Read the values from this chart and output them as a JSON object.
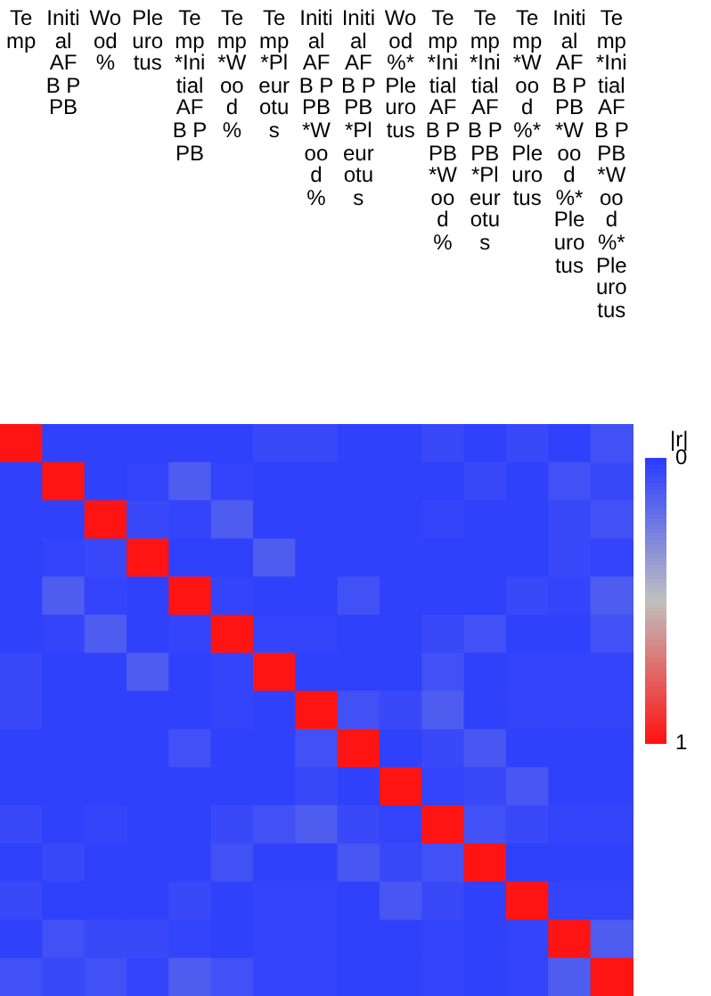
{
  "chart_data": {
    "type": "heatmap",
    "clabel": "|r|",
    "categories": [
      "Temp",
      "Initial AFB PPB",
      "Wood %",
      "Pleurotus",
      "Temp*Initial AFB PPB",
      "Temp*Wood %",
      "Temp*Pleurotus",
      "Initial AFB PPB*Wood %",
      "Initial AFB PPB*Pleurotus",
      "Wood %*Pleurotus",
      "Temp*Initial AFB PPB*Wood %",
      "Temp*Initial AFB PPB*Pleurotus",
      "Temp*Wood %*Pleurotus",
      "Initial AFB PPB*Wood %*Pleurotus",
      "Temp*Initial AFB PPB*Wood %*Pleurotus"
    ],
    "y_categories": [
      null,
      null,
      null,
      null,
      null,
      null,
      null,
      null,
      null,
      null,
      null,
      null,
      null,
      null,
      null
    ],
    "cells": [
      [
        1,
        0.02,
        0.02,
        0.02,
        0.02,
        0.02,
        0.05,
        0.05,
        0.02,
        0.02,
        0.05,
        0.02,
        0.05,
        0.02,
        0.08
      ],
      [
        0.02,
        1,
        0.02,
        0.03,
        0.12,
        0.03,
        0.02,
        0.02,
        0.02,
        0.02,
        0.02,
        0.05,
        0.02,
        0.08,
        0.05
      ],
      [
        0.02,
        0.02,
        1,
        0.05,
        0.03,
        0.12,
        0.02,
        0.02,
        0.02,
        0.02,
        0.03,
        0.02,
        0.02,
        0.05,
        0.08
      ],
      [
        0.02,
        0.03,
        0.05,
        1,
        0.02,
        0.02,
        0.12,
        0.02,
        0.02,
        0.02,
        0.02,
        0.02,
        0.02,
        0.05,
        0.03
      ],
      [
        0.02,
        0.12,
        0.03,
        0.02,
        1,
        0.03,
        0.02,
        0.02,
        0.08,
        0.02,
        0.02,
        0.02,
        0.05,
        0.03,
        0.12
      ],
      [
        0.02,
        0.03,
        0.12,
        0.02,
        0.03,
        1,
        0.03,
        0.03,
        0.02,
        0.02,
        0.05,
        0.08,
        0.02,
        0.02,
        0.08
      ],
      [
        0.05,
        0.02,
        0.02,
        0.12,
        0.02,
        0.03,
        1,
        0.02,
        0.02,
        0.02,
        0.08,
        0.02,
        0.03,
        0.03,
        0.03
      ],
      [
        0.05,
        0.02,
        0.02,
        0.02,
        0.02,
        0.03,
        0.02,
        1,
        0.08,
        0.05,
        0.12,
        0.02,
        0.03,
        0.03,
        0.03
      ],
      [
        0.02,
        0.02,
        0.02,
        0.02,
        0.08,
        0.02,
        0.02,
        0.08,
        1,
        0.02,
        0.05,
        0.1,
        0.02,
        0.02,
        0.02
      ],
      [
        0.02,
        0.02,
        0.02,
        0.02,
        0.02,
        0.02,
        0.02,
        0.05,
        0.02,
        1,
        0.03,
        0.05,
        0.1,
        0.02,
        0.02
      ],
      [
        0.05,
        0.02,
        0.03,
        0.02,
        0.02,
        0.05,
        0.08,
        0.12,
        0.05,
        0.03,
        1,
        0.08,
        0.05,
        0.03,
        0.03
      ],
      [
        0.02,
        0.05,
        0.02,
        0.02,
        0.02,
        0.08,
        0.02,
        0.02,
        0.1,
        0.05,
        0.08,
        1,
        0.02,
        0.02,
        0.02
      ],
      [
        0.05,
        0.02,
        0.02,
        0.02,
        0.05,
        0.02,
        0.03,
        0.03,
        0.02,
        0.1,
        0.05,
        0.02,
        1,
        0.03,
        0.03
      ],
      [
        0.02,
        0.08,
        0.05,
        0.05,
        0.03,
        0.02,
        0.03,
        0.03,
        0.02,
        0.02,
        0.03,
        0.02,
        0.03,
        1,
        0.12
      ],
      [
        0.08,
        0.05,
        0.08,
        0.03,
        0.12,
        0.08,
        0.03,
        0.03,
        0.02,
        0.02,
        0.03,
        0.02,
        0.03,
        0.12,
        1
      ]
    ],
    "clim": [
      0,
      1
    ],
    "cticks": [
      0,
      1
    ]
  }
}
